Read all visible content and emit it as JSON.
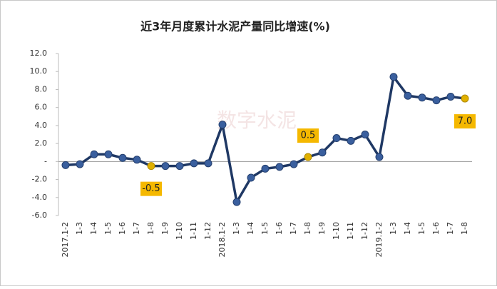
{
  "chart_data": {
    "type": "line",
    "title": "近3年月度累计水泥产量同比增速(%)",
    "watermark": "数字水泥",
    "categories": [
      "2017.1-2",
      "1-3",
      "1-4",
      "1-5",
      "1-6",
      "1-7",
      "1-8",
      "1-9",
      "1-10",
      "1-11",
      "1-12",
      "2018.1-2",
      "1-3",
      "1-4",
      "1-5",
      "1-6",
      "1-7",
      "1-8",
      "1-9",
      "1-10",
      "1-11",
      "1-12",
      "2019.1-2",
      "1-3",
      "1-4",
      "1-5",
      "1-6",
      "1-7",
      "1-8"
    ],
    "values": [
      -0.4,
      -0.3,
      0.8,
      0.8,
      0.4,
      0.2,
      -0.5,
      -0.5,
      -0.5,
      -0.2,
      -0.2,
      4.1,
      -4.5,
      -1.8,
      -0.8,
      -0.6,
      -0.3,
      0.5,
      1.0,
      2.6,
      2.3,
      3.0,
      0.5,
      9.4,
      7.3,
      7.1,
      6.8,
      7.2,
      7.0
    ],
    "value_labels": [
      null,
      null,
      null,
      null,
      null,
      null,
      "-0.5",
      null,
      null,
      null,
      null,
      null,
      null,
      null,
      null,
      null,
      null,
      "0.5",
      null,
      null,
      null,
      null,
      null,
      null,
      null,
      null,
      null,
      null,
      "7.0"
    ],
    "color": "#1f3864",
    "marker_color": "#3a5f9e",
    "highlight_color": "#e0b000",
    "ylim": [
      -6,
      12
    ],
    "yticks": [
      {
        "value": -6,
        "label": "-6.0"
      },
      {
        "value": -4,
        "label": "-4.0"
      },
      {
        "value": -2,
        "label": "-2.0"
      },
      {
        "value": 0,
        "label": "-"
      },
      {
        "value": 2,
        "label": "2.0"
      },
      {
        "value": 4,
        "label": "4.0"
      },
      {
        "value": 6,
        "label": "6.0"
      },
      {
        "value": 8,
        "label": "8.0"
      },
      {
        "value": 10,
        "label": "10.0"
      },
      {
        "value": 12,
        "label": "12.0"
      }
    ],
    "grid": false
  }
}
